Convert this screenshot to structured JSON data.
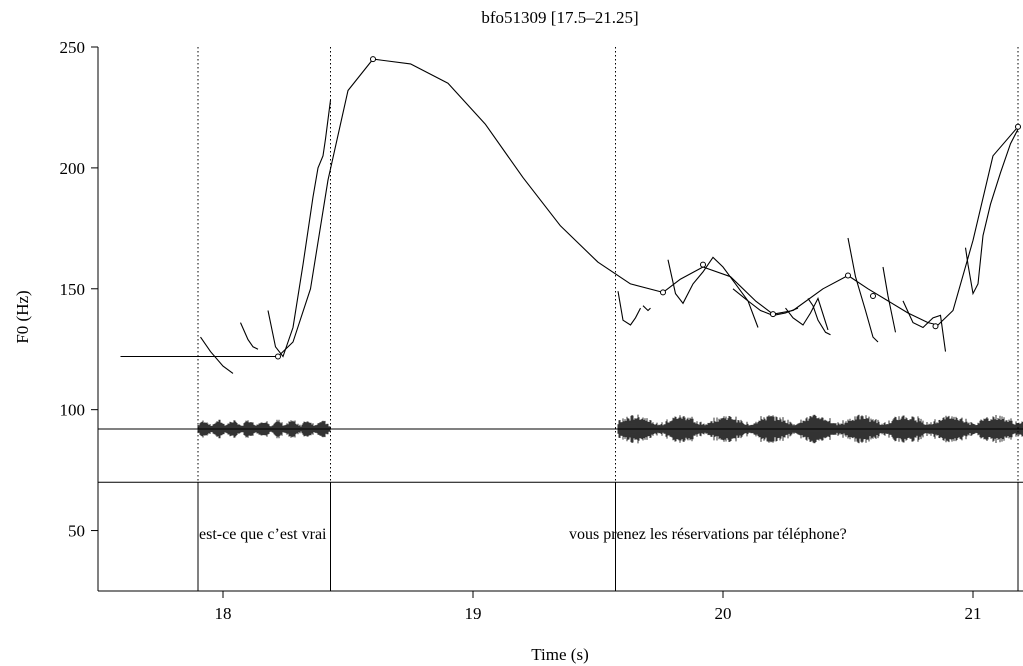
{
  "chart_data": {
    "type": "line",
    "title": "bfo51309 [17.5–21.25]",
    "xlabel": "Time (s)",
    "ylabel": "F0 (Hz)",
    "xlim": [
      17.5,
      21.2
    ],
    "ylim": [
      25,
      250
    ],
    "xticks": [
      18,
      19,
      20,
      21
    ],
    "yticks": [
      50,
      100,
      150,
      200,
      250
    ],
    "grid": false,
    "stylized_contour": {
      "name": "",
      "x": [
        17.59,
        18.22,
        18.28,
        18.35,
        18.42,
        18.5,
        18.6,
        18.75,
        18.9,
        19.05,
        19.2,
        19.35,
        19.5,
        19.63,
        19.76,
        19.83,
        19.92,
        20.03,
        20.13,
        20.2,
        20.28,
        20.4,
        20.5,
        20.58,
        20.66,
        20.74,
        20.82,
        20.86,
        20.92,
        21.0,
        21.08,
        21.18
      ],
      "y": [
        122,
        122,
        128,
        150,
        195,
        232,
        245,
        243,
        235,
        218,
        196,
        176,
        161,
        152,
        148.5,
        154,
        159,
        155,
        145,
        139.5,
        141,
        150,
        155.5,
        150,
        145,
        140,
        136,
        135,
        141,
        170,
        205,
        217
      ]
    },
    "anchor_points": {
      "x": [
        18.22,
        18.6,
        19.76,
        19.92,
        20.2,
        20.5,
        20.6,
        20.85,
        21.18
      ],
      "y": [
        122,
        245,
        148.5,
        160,
        139.5,
        155.5,
        147,
        134.5,
        217
      ]
    },
    "measured_f0_segments": [
      {
        "x": [
          17.91,
          17.95,
          18.0,
          18.04
        ],
        "y": [
          130,
          124,
          118,
          115
        ]
      },
      {
        "x": [
          18.07,
          18.1,
          18.12,
          18.14
        ],
        "y": [
          136,
          129,
          126,
          125
        ]
      },
      {
        "x": [
          18.18,
          18.21,
          18.24,
          18.28,
          18.32,
          18.36,
          18.38,
          18.4,
          18.41,
          18.42,
          18.43
        ],
        "y": [
          141,
          126,
          122,
          134,
          160,
          188,
          200,
          205,
          212,
          220,
          228
        ]
      },
      {
        "x": [
          19.58,
          19.6,
          19.63,
          19.65,
          19.67
        ],
        "y": [
          149,
          137,
          135,
          138,
          142
        ]
      },
      {
        "x": [
          19.68,
          19.69,
          19.7,
          19.71
        ],
        "y": [
          143,
          142,
          141,
          142
        ]
      },
      {
        "x": [
          19.78,
          19.81,
          19.84,
          19.88,
          19.92,
          19.96,
          20.0,
          20.05,
          20.1,
          20.15,
          20.2,
          20.25,
          20.3
        ],
        "y": [
          162,
          148,
          144,
          152,
          157,
          163,
          159,
          152,
          145,
          141,
          139,
          140,
          142
        ]
      },
      {
        "x": [
          20.04,
          20.1,
          20.14
        ],
        "y": [
          150,
          145,
          134
        ]
      },
      {
        "x": [
          20.25,
          20.28,
          20.32,
          20.35,
          20.38,
          20.42
        ],
        "y": [
          142,
          138,
          135,
          140,
          146,
          133
        ]
      },
      {
        "x": [
          20.34,
          20.36,
          20.38,
          20.41,
          20.43
        ],
        "y": [
          146,
          143,
          137,
          132,
          131
        ]
      },
      {
        "x": [
          20.5,
          20.53,
          20.55,
          20.57,
          20.6,
          20.62
        ],
        "y": [
          171,
          155,
          148,
          141,
          130,
          128
        ]
      },
      {
        "x": [
          20.64,
          20.66,
          20.69
        ],
        "y": [
          159,
          147,
          132
        ]
      },
      {
        "x": [
          20.72,
          20.76,
          20.8,
          20.84,
          20.87,
          20.89
        ],
        "y": [
          145,
          136,
          134,
          138,
          139,
          124
        ]
      },
      {
        "x": [
          20.97,
          20.98,
          21.0,
          21.02,
          21.04,
          21.07,
          21.11,
          21.15,
          21.18
        ],
        "y": [
          167,
          160,
          148,
          152,
          172,
          185,
          198,
          210,
          216
        ]
      }
    ],
    "waveform": {
      "baseline_hz": 92,
      "segments": [
        {
          "x": [
            17.9,
            18.43
          ],
          "amp": 4
        },
        {
          "x": [
            19.58,
            21.2
          ],
          "amp": 6
        }
      ]
    },
    "word_tier": {
      "separator_hz": 70,
      "boundaries": [
        17.9,
        18.43,
        19.57,
        21.18
      ],
      "labels": [
        {
          "text": "est-ce que c’est vrai",
          "x": 17.9
        },
        {
          "text": "vous prenez les réservations par téléphone?",
          "x": 19.38
        }
      ],
      "label_hz": 49
    }
  }
}
